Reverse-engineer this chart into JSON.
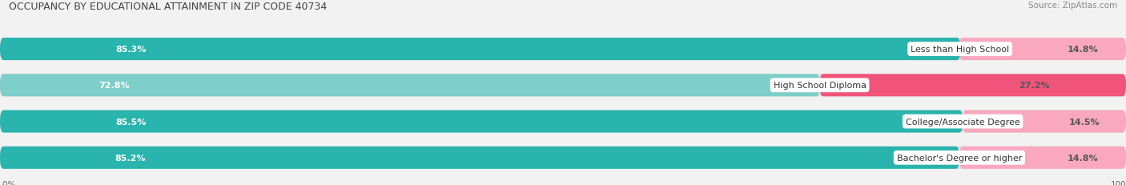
{
  "title": "OCCUPANCY BY EDUCATIONAL ATTAINMENT IN ZIP CODE 40734",
  "source": "Source: ZipAtlas.com",
  "categories": [
    "Less than High School",
    "High School Diploma",
    "College/Associate Degree",
    "Bachelor's Degree or higher"
  ],
  "owner_pct": [
    85.3,
    72.8,
    85.5,
    85.2
  ],
  "renter_pct": [
    14.8,
    27.2,
    14.5,
    14.8
  ],
  "owner_colors": [
    "#29b4ae",
    "#7ececa",
    "#29b4ae",
    "#29b4ae"
  ],
  "renter_colors": [
    "#f9a8bf",
    "#f0547a",
    "#f9a8bf",
    "#f9a8bf"
  ],
  "bg_color": "#f2f2f2",
  "bar_bg_color": "#e0e0e0",
  "title_fontsize": 9,
  "label_fontsize": 8,
  "pct_fontsize": 8,
  "tick_fontsize": 7.5,
  "legend_fontsize": 8,
  "source_fontsize": 7.5
}
